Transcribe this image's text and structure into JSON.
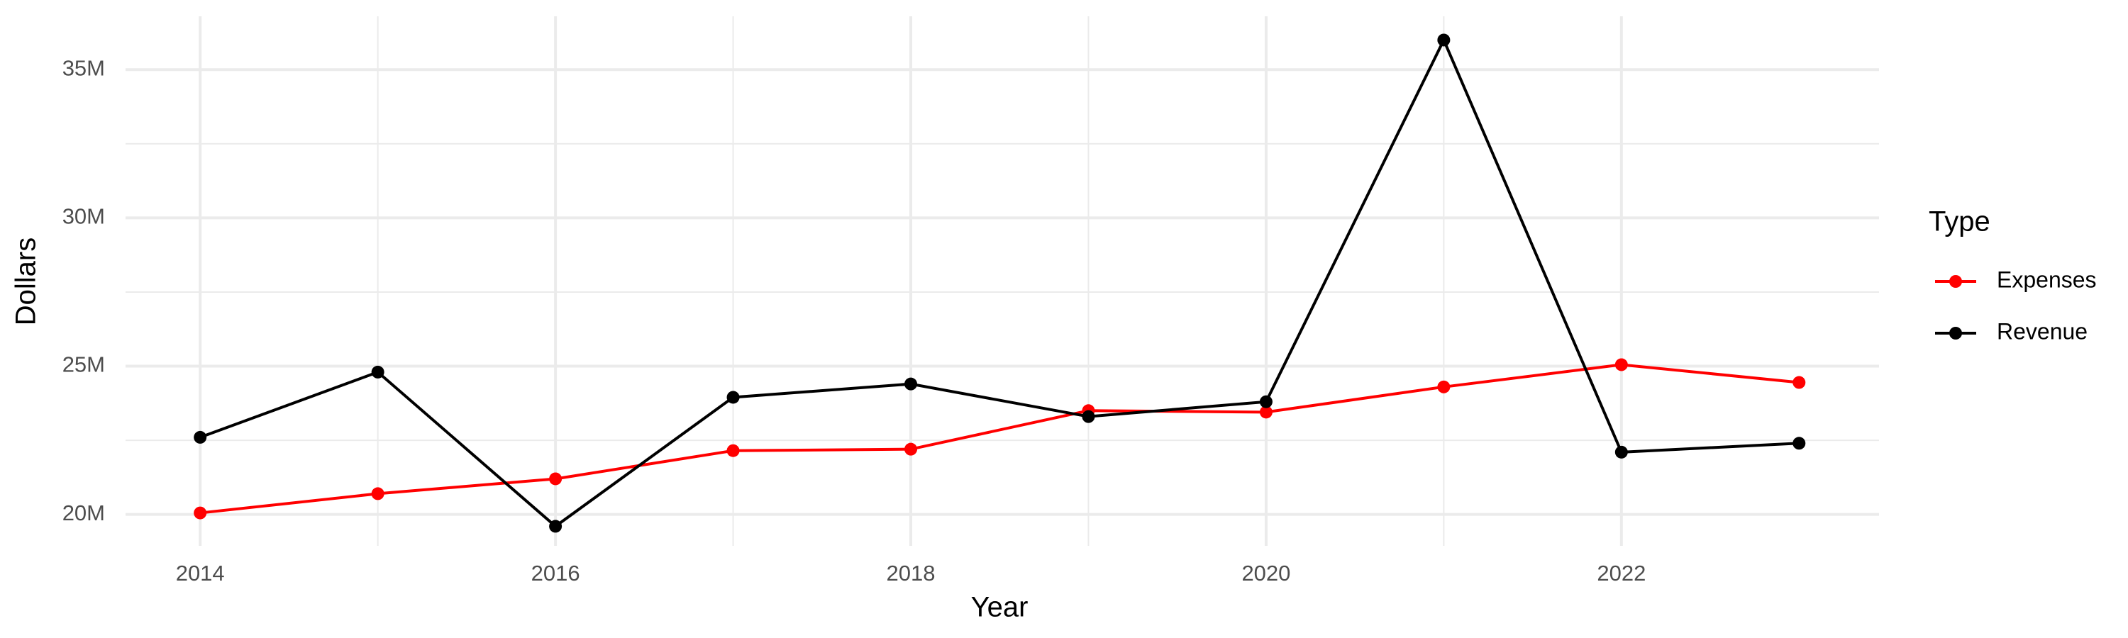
{
  "chart_data": {
    "type": "line",
    "x_label": "Year",
    "y_label": "Dollars",
    "legend_title": "Type",
    "x": [
      2014,
      2015,
      2016,
      2017,
      2018,
      2019,
      2020,
      2021,
      2022,
      2023
    ],
    "series": [
      {
        "name": "Expenses",
        "color": "#ff0000",
        "values": [
          20050000,
          20700000,
          21200000,
          22150000,
          22200000,
          23500000,
          23450000,
          24300000,
          25050000,
          24450000
        ]
      },
      {
        "name": "Revenue",
        "color": "#000000",
        "values": [
          22600000,
          24800000,
          19600000,
          23950000,
          24400000,
          23300000,
          23800000,
          36000000,
          22100000,
          22400000
        ]
      }
    ],
    "xlim": [
      2013.58,
      2023.45
    ],
    "xticks": [
      2014,
      2016,
      2018,
      2020,
      2022
    ],
    "ylim": [
      18940000,
      36800000
    ],
    "yticks": [
      {
        "value": 20000000,
        "label": "20M"
      },
      {
        "value": 25000000,
        "label": "25M"
      },
      {
        "value": 30000000,
        "label": "30M"
      },
      {
        "value": 35000000,
        "label": "35M"
      }
    ],
    "grid": true,
    "legend": "right"
  }
}
